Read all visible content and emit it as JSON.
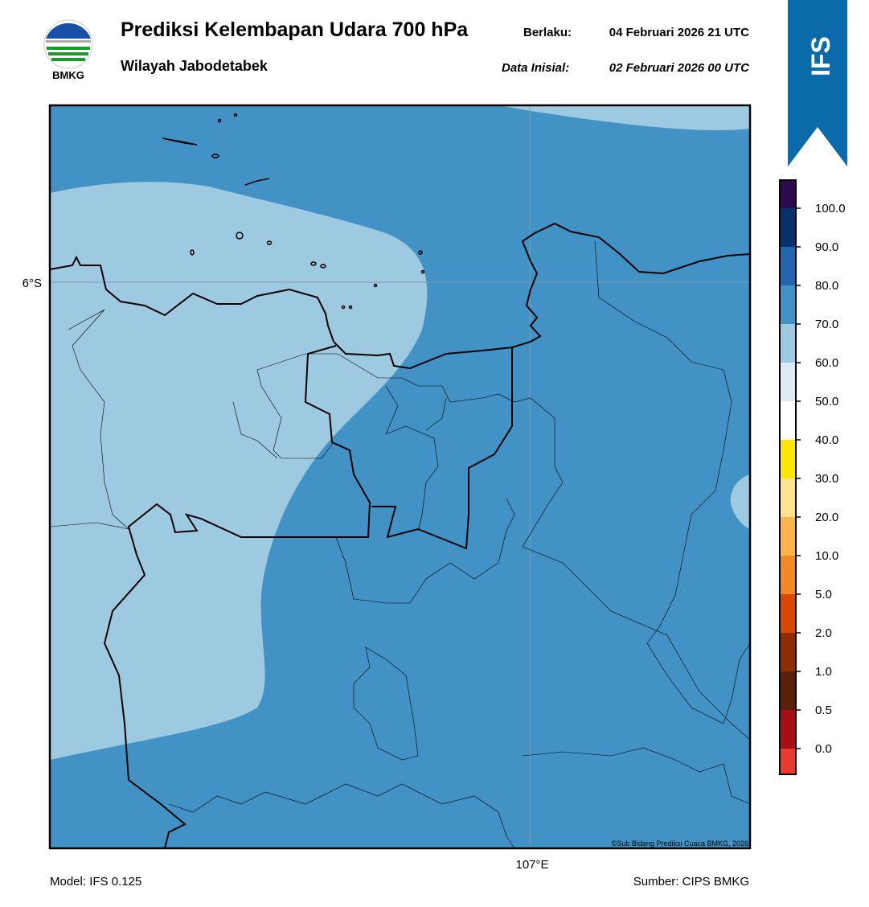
{
  "header": {
    "logo_text": "BMKG",
    "title": "Prediksi Kelembapan Udara 700 hPa",
    "subtitle": "Wilayah Jabodetabek",
    "valid_label": "Berlaku:",
    "valid_time": "04 Februari 2026 21 UTC",
    "init_label": "Data Inisial:",
    "init_time": "02 Februari 2026 00 UTC",
    "badge": "IFS"
  },
  "map": {
    "lat_label": "6°S",
    "lon_label": "107°E",
    "credit": "©Sub Bidang Prediksi Cuaca BMKG, 2026"
  },
  "colorbar": {
    "colors": [
      "#e63b2e",
      "#a50f15",
      "#5a2008",
      "#8c2d04",
      "#d94801",
      "#f08a24",
      "#fdb44b",
      "#fee391",
      "#ffe600",
      "#ffffff",
      "#deebf7",
      "#9ecae1",
      "#4292c6",
      "#2166ac",
      "#08306b",
      "#2d0a4e"
    ],
    "ticks": [
      {
        "value": 0,
        "label": "0.0"
      },
      {
        "value": 0.5,
        "label": "0.5"
      },
      {
        "value": 1,
        "label": "1.0"
      },
      {
        "value": 2,
        "label": "2.0"
      },
      {
        "value": 5,
        "label": "5.0"
      },
      {
        "value": 10,
        "label": "10.0"
      },
      {
        "value": 20,
        "label": "20.0"
      },
      {
        "value": 30,
        "label": "30.0"
      },
      {
        "value": 40,
        "label": "40.0"
      },
      {
        "value": 50,
        "label": "50.0"
      },
      {
        "value": 60,
        "label": "60.0"
      },
      {
        "value": 70,
        "label": "70.0"
      },
      {
        "value": 80,
        "label": "80.0"
      },
      {
        "value": 90,
        "label": "90.0"
      },
      {
        "value": 100,
        "label": "100.0"
      }
    ]
  },
  "footer": {
    "model": "Model: IFS 0.125",
    "source": "Sumber: CIPS BMKG"
  }
}
